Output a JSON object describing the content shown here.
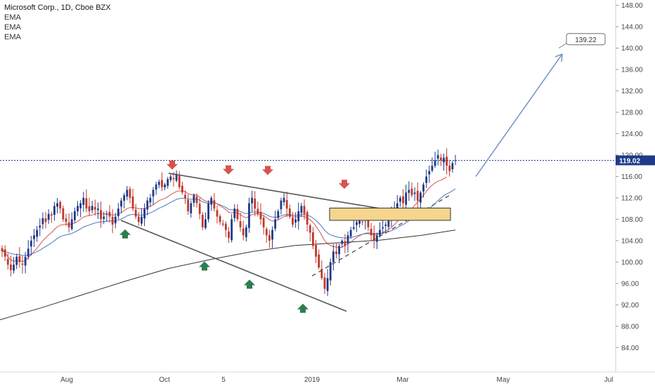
{
  "header": {
    "title": "Microsoft Corp., 1D, Cboe BZX",
    "indicators": [
      "EMA",
      "EMA",
      "EMA"
    ]
  },
  "chart_data": {
    "type": "candlestick",
    "y_ticks": [
      "148.00",
      "144.00",
      "140.00",
      "136.00",
      "132.00",
      "128.00",
      "124.00",
      "120.00",
      "116.00",
      "112.00",
      "108.00",
      "104.00",
      "100.00",
      "96.00",
      "92.00",
      "88.00",
      "84.00"
    ],
    "ylim": [
      80.5,
      149
    ],
    "x_ticks": [
      "Aug",
      "Oct",
      "5",
      "2019",
      "Mar",
      "May",
      "Jul"
    ],
    "current_price": "119.02",
    "current_price_value": 119.02,
    "target_label": "139.22",
    "target_value": 139.22,
    "colors": {
      "up": "#1f3a8a",
      "down": "#c0392b",
      "ema_short": "#d9534f",
      "ema_mid": "#4a78c2",
      "ema_long": "#333333",
      "price_line": "#1e3a8a",
      "axis_bg": "#ffffff",
      "zone_fill": "#f6d58e",
      "zone_stroke": "#333333",
      "arrow_up": "#2e7d4f",
      "arrow_down": "#d9534f",
      "trendline": "#555555",
      "projection": "#7b96c8"
    },
    "closes": [
      102,
      101,
      99.5,
      98.5,
      99.5,
      101,
      100,
      99.5,
      101,
      102.5,
      104,
      105,
      106,
      106.8,
      108.2,
      107.5,
      109,
      108.7,
      110.5,
      111,
      110,
      108,
      107.5,
      106.5,
      108,
      109.5,
      110.5,
      111,
      112,
      110,
      109.5,
      110.5,
      109.8,
      110,
      108,
      108.5,
      109,
      108.5,
      107,
      108.5,
      110,
      111.5,
      112.5,
      113.5,
      112,
      110,
      108.5,
      107.5,
      108.5,
      110,
      111.5,
      112,
      113.5,
      114.5,
      115,
      114,
      114.5,
      115.5,
      116,
      115.5,
      116.5,
      114,
      113,
      112,
      109.5,
      111,
      112.5,
      111,
      109,
      106.5,
      108,
      111,
      112,
      110,
      108.5,
      107.5,
      107,
      106,
      104.5,
      108,
      110,
      108,
      106.5,
      105,
      106.5,
      111,
      112,
      110,
      109,
      108,
      106.5,
      105,
      104,
      106,
      108,
      109.5,
      111.5,
      112,
      110,
      108.5,
      107,
      108,
      109.5,
      110.5,
      109,
      107,
      105.5,
      103,
      101,
      99,
      97,
      95,
      97,
      100,
      102,
      101.5,
      103,
      104,
      103,
      105,
      106,
      106.5,
      107.5,
      108,
      107.5,
      108,
      106.5,
      105,
      104,
      105,
      106,
      106.5,
      107,
      108,
      109,
      110,
      111,
      112,
      111,
      113,
      113.5,
      112.5,
      113,
      111.5,
      113,
      114.5,
      116,
      117,
      118,
      119,
      120,
      119,
      119.5,
      118,
      117,
      118.5,
      119.02
    ],
    "ema_short": [
      102.5,
      101.8,
      101,
      100.4,
      100.2,
      100.2,
      100.2,
      100.1,
      100.3,
      100.8,
      101.4,
      102,
      102.6,
      103.3,
      104,
      104.5,
      105.1,
      105.5,
      106.1,
      106.6,
      106.9,
      107,
      107.1,
      107,
      107.1,
      107.3,
      107.6,
      108,
      108.4,
      108.6,
      108.7,
      108.8,
      109,
      109.1,
      109,
      109,
      109,
      108.9,
      108.8,
      108.8,
      109,
      109.3,
      109.6,
      110,
      110.2,
      110.2,
      110.1,
      110,
      110,
      110,
      110.2,
      110.4,
      110.7,
      111.1,
      111.5,
      111.7,
      111.9,
      112.2,
      112.6,
      112.9,
      113.2,
      113.3,
      113.3,
      113.2,
      112.8,
      112.6,
      112.6,
      112.5,
      112.2,
      111.7,
      111.4,
      111.3,
      111.4,
      111.2,
      110.9,
      110.5,
      110.2,
      109.8,
      109.3,
      109.2,
      109.3,
      109.2,
      108.9,
      108.5,
      108.3,
      108.5,
      108.9,
      109,
      109,
      108.9,
      108.7,
      108.3,
      107.9,
      107.7,
      107.7,
      107.9,
      108.2,
      108.5,
      108.7,
      108.7,
      108.5,
      108.4,
      108.5,
      108.6,
      108.5,
      108.3,
      107.9,
      107.4,
      106.7,
      105.9,
      105,
      104,
      103.4,
      103.1,
      102.9,
      102.8,
      102.7,
      102.8,
      103.1,
      103.4,
      103.7,
      104.2,
      104.6,
      104.9,
      105.2,
      105.3,
      105.3,
      105.2,
      105.1,
      105.2,
      105.3,
      105.5,
      105.8,
      106.1,
      106.5,
      107,
      107.6,
      108.1,
      108.6,
      109.1,
      109.5,
      110,
      110.6,
      111.2,
      111.8,
      112.5,
      113.2,
      113.9,
      114.4,
      114.8,
      115.1,
      115.3,
      115.6,
      115.9
    ]
  }
}
